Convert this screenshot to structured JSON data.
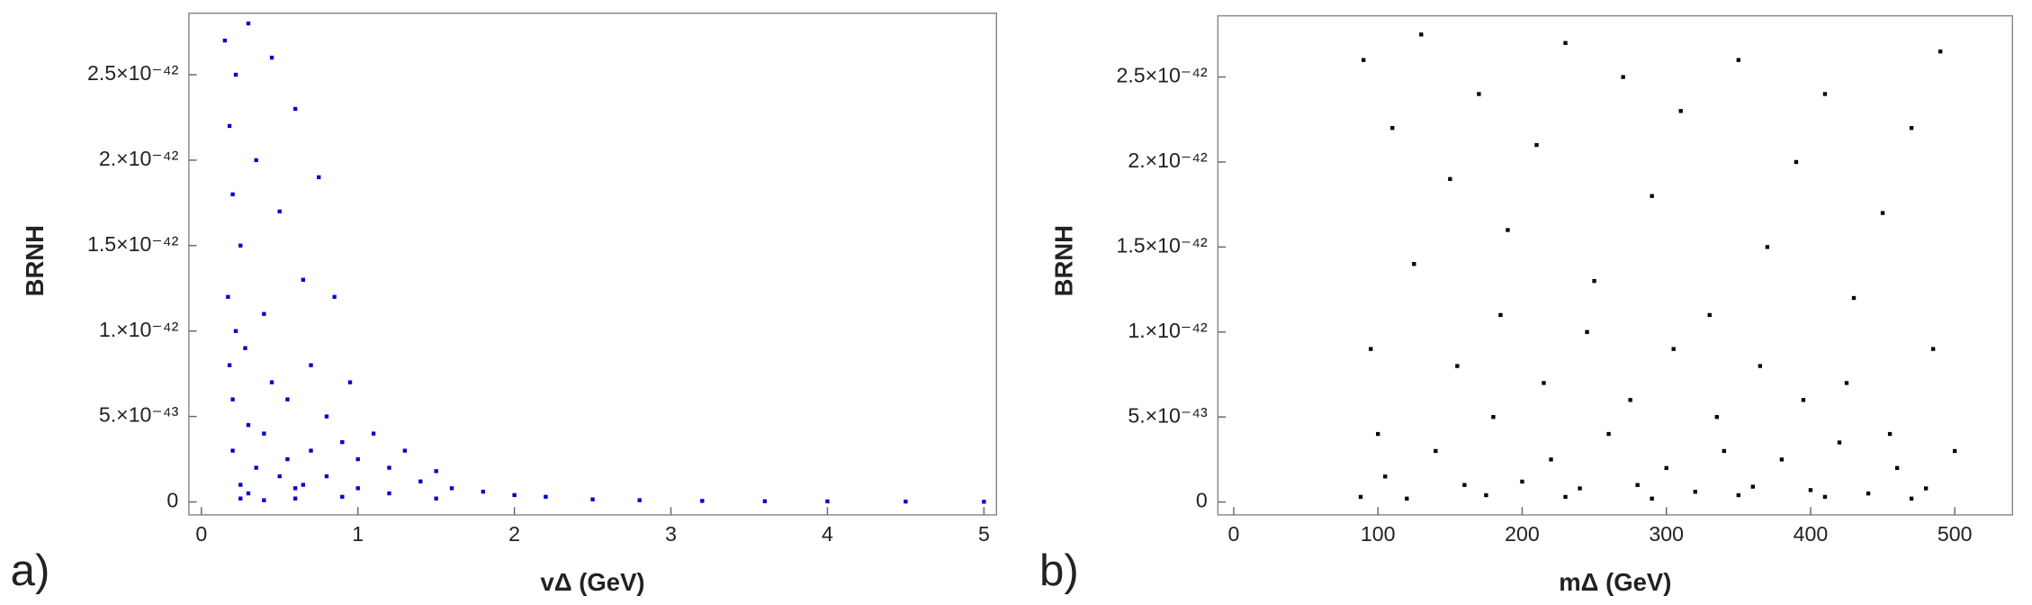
{
  "chart_data": [
    {
      "type": "scatter",
      "panel_label": "a)",
      "x_label": "vΔ (GeV)",
      "y_label": "BRNH",
      "color": "#0000cc",
      "xlim": [
        -0.08,
        5.08
      ],
      "ylim": [
        -7.6e-44,
        2.86e-42
      ],
      "xticks": [
        0,
        1,
        2,
        3,
        4,
        5
      ],
      "yticks": [
        0,
        {
          "value": 5e-43,
          "label": "5.×10⁻⁴³"
        },
        {
          "value": 1e-42,
          "label": "1.×10⁻⁴²"
        },
        {
          "value": 1.5e-42,
          "label": "1.5×10⁻⁴²"
        },
        {
          "value": 2e-42,
          "label": "2.×10⁻⁴²"
        },
        {
          "value": 2.5e-42,
          "label": "2.5×10⁻⁴²"
        }
      ],
      "x": [
        0.15,
        0.18,
        0.2,
        0.17,
        0.22,
        0.25,
        0.3,
        0.28,
        0.35,
        0.4,
        0.45,
        0.5,
        0.55,
        0.6,
        0.65,
        0.7,
        0.75,
        0.8,
        0.85,
        0.9,
        0.95,
        1.0,
        1.1,
        1.2,
        1.3,
        1.4,
        1.5,
        1.6,
        1.8,
        2.0,
        2.2,
        2.5,
        2.8,
        3.2,
        3.6,
        4.0,
        4.5,
        5.0,
        0.2,
        0.25,
        0.3,
        0.35,
        0.4,
        0.5,
        0.6,
        0.7,
        0.2,
        0.3,
        0.45,
        0.55,
        0.65,
        0.8,
        1.0,
        1.2,
        0.25,
        0.4,
        0.6,
        0.9,
        1.5,
        0.18,
        0.22
      ],
      "values": [
        2.7e-42,
        2.2e-42,
        1.8e-42,
        1.2e-42,
        2.5e-42,
        1.5e-42,
        2.8e-42,
        9e-43,
        2e-42,
        1.1e-42,
        2.6e-42,
        1.7e-42,
        6e-43,
        2.3e-42,
        1.3e-42,
        8e-43,
        1.9e-42,
        5e-43,
        1.2e-42,
        3.5e-43,
        7e-43,
        2.5e-43,
        4e-43,
        2e-43,
        3e-43,
        1.2e-43,
        1.8e-43,
        8e-44,
        6e-44,
        4e-44,
        3e-44,
        1.5e-44,
        1e-44,
        6e-45,
        4e-45,
        3e-45,
        2e-45,
        1e-45,
        3e-43,
        1e-43,
        5e-44,
        2e-43,
        4e-43,
        1.5e-43,
        8e-44,
        3e-43,
        6e-43,
        4.5e-43,
        7e-43,
        2.5e-43,
        1e-43,
        1.5e-43,
        8e-44,
        5e-44,
        2e-44,
        1e-44,
        2e-44,
        3e-44,
        2e-44,
        8e-43,
        1e-42
      ]
    },
    {
      "type": "scatter",
      "panel_label": "b)",
      "x_label": "mΔ (GeV)",
      "y_label": "BRNH",
      "color": "#000000",
      "xlim": [
        -11,
        540
      ],
      "ylim": [
        -7.6e-44,
        2.86e-42
      ],
      "xticks": [
        0,
        100,
        200,
        300,
        400,
        500
      ],
      "yticks": [
        0,
        {
          "value": 5e-43,
          "label": "5.×10⁻⁴³"
        },
        {
          "value": 1e-42,
          "label": "1.×10⁻⁴²"
        },
        {
          "value": 1.5e-42,
          "label": "1.5×10⁻⁴²"
        },
        {
          "value": 2e-42,
          "label": "2.×10⁻⁴²"
        },
        {
          "value": 2.5e-42,
          "label": "2.5×10⁻⁴²"
        }
      ],
      "x": [
        90,
        110,
        130,
        150,
        170,
        190,
        210,
        230,
        250,
        270,
        290,
        310,
        330,
        350,
        370,
        390,
        410,
        430,
        450,
        470,
        490,
        95,
        125,
        155,
        185,
        215,
        245,
        275,
        305,
        335,
        365,
        395,
        425,
        455,
        485,
        100,
        140,
        180,
        220,
        260,
        300,
        340,
        380,
        420,
        460,
        500,
        105,
        160,
        200,
        240,
        280,
        320,
        360,
        400,
        440,
        480,
        88,
        120,
        175,
        230,
        290,
        350,
        410,
        470
      ],
      "values": [
        2.6e-42,
        2.2e-42,
        2.75e-42,
        1.9e-42,
        2.4e-42,
        1.6e-42,
        2.1e-42,
        2.7e-42,
        1.3e-42,
        2.5e-42,
        1.8e-42,
        2.3e-42,
        1.1e-42,
        2.6e-42,
        1.5e-42,
        2e-42,
        2.4e-42,
        1.2e-42,
        1.7e-42,
        2.2e-42,
        2.65e-42,
        9e-43,
        1.4e-42,
        8e-43,
        1.1e-42,
        7e-43,
        1e-42,
        6e-43,
        9e-43,
        5e-43,
        8e-43,
        6e-43,
        7e-43,
        4e-43,
        9e-43,
        4e-43,
        3e-43,
        5e-43,
        2.5e-43,
        4e-43,
        2e-43,
        3e-43,
        2.5e-43,
        3.5e-43,
        2e-43,
        3e-43,
        1.5e-43,
        1e-43,
        1.2e-43,
        8e-44,
        1e-43,
        6e-44,
        9e-44,
        7e-44,
        5e-44,
        8e-44,
        3e-44,
        2e-44,
        4e-44,
        3e-44,
        2e-44,
        4e-44,
        3e-44,
        2e-44
      ]
    }
  ]
}
